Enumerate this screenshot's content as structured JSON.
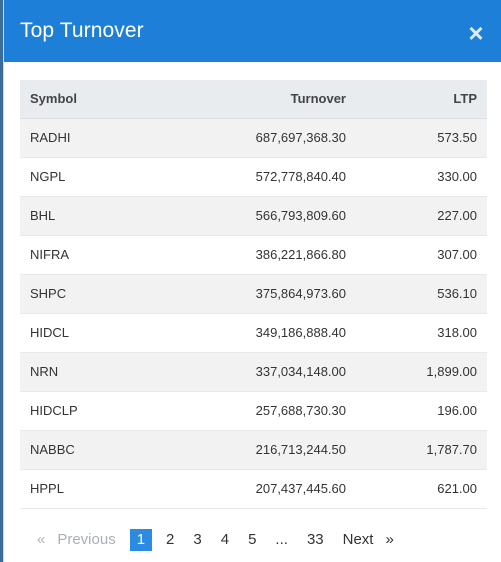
{
  "modal": {
    "title": "Top Turnover",
    "close_symbol": "×"
  },
  "table": {
    "headers": {
      "symbol": "Symbol",
      "turnover": "Turnover",
      "ltp": "LTP"
    },
    "rows": [
      {
        "symbol": "RADHI",
        "turnover": "687,697,368.30",
        "ltp": "573.50"
      },
      {
        "symbol": "NGPL",
        "turnover": "572,778,840.40",
        "ltp": "330.00"
      },
      {
        "symbol": "BHL",
        "turnover": "566,793,809.60",
        "ltp": "227.00"
      },
      {
        "symbol": "NIFRA",
        "turnover": "386,221,866.80",
        "ltp": "307.00"
      },
      {
        "symbol": "SHPC",
        "turnover": "375,864,973.60",
        "ltp": "536.10"
      },
      {
        "symbol": "HIDCL",
        "turnover": "349,186,888.40",
        "ltp": "318.00"
      },
      {
        "symbol": "NRN",
        "turnover": "337,034,148.00",
        "ltp": "1,899.00"
      },
      {
        "symbol": "HIDCLP",
        "turnover": "257,688,730.30",
        "ltp": "196.00"
      },
      {
        "symbol": "NABBC",
        "turnover": "216,713,244.50",
        "ltp": "1,787.70"
      },
      {
        "symbol": "HPPL",
        "turnover": "207,437,445.60",
        "ltp": "621.00"
      }
    ]
  },
  "pagination": {
    "prev_arrow": "«",
    "previous": "Previous",
    "pages": [
      "1",
      "2",
      "3",
      "4",
      "5",
      "...",
      "33"
    ],
    "current": "1",
    "next": "Next",
    "next_arrow": "»"
  },
  "colors": {
    "header_bg": "#1e7fd8",
    "active_page": "#2a8be0"
  }
}
